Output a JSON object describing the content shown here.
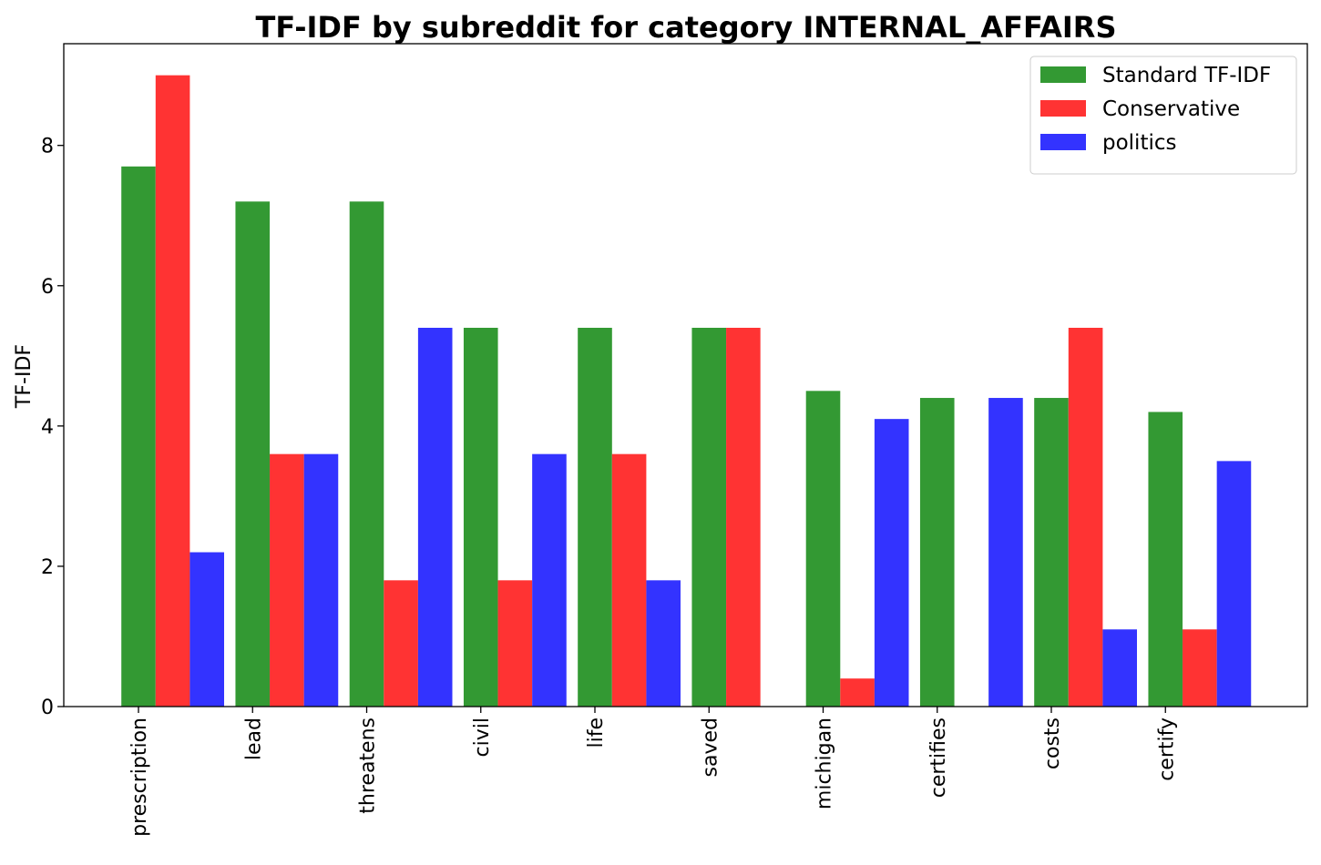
{
  "chart_data": {
    "type": "bar",
    "title": "TF-IDF by subreddit for category INTERNAL_AFFAIRS",
    "xlabel": "",
    "ylabel": "TF-IDF",
    "ylim": [
      0,
      9.45
    ],
    "yticks": [
      0,
      2,
      4,
      6,
      8
    ],
    "grid": false,
    "legend_position": "top-right",
    "categories": [
      "prescription",
      "lead",
      "threatens",
      "civil",
      "life",
      "saved",
      "michigan",
      "certifies",
      "costs",
      "certify"
    ],
    "series": [
      {
        "name": "Standard TF-IDF",
        "color": "#339933",
        "values": [
          7.7,
          7.2,
          7.2,
          5.4,
          5.4,
          5.4,
          4.5,
          4.4,
          4.4,
          4.2
        ]
      },
      {
        "name": "Conservative",
        "color": "#ff3333",
        "values": [
          9.0,
          3.6,
          1.8,
          1.8,
          3.6,
          5.4,
          0.4,
          0,
          5.4,
          1.1
        ]
      },
      {
        "name": "politics",
        "color": "#3333ff",
        "values": [
          2.2,
          3.6,
          5.4,
          3.6,
          1.8,
          0,
          4.1,
          4.4,
          1.1,
          3.5
        ]
      }
    ]
  }
}
